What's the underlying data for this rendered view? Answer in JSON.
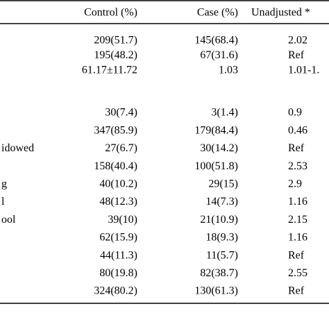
{
  "table": {
    "header": [
      "Control (%)",
      "Case (%)",
      "Unadjusted *"
    ],
    "rows": [
      {
        "control": "209(51.7)",
        "case": "145(68.4)",
        "unadjusted": "2.02"
      },
      {
        "control": "195(48.2)",
        "case": "67(31.6)",
        "unadjusted": "Ref"
      },
      {
        "control": "61.17±11.72",
        "case": "1.03",
        "unadjusted": "1.01-1."
      },
      {
        "control": "30(7.4)",
        "case": "3(1.4)",
        "unadjusted": "0.9"
      },
      {
        "control": "347(85.9)",
        "case": "179(84.4)",
        "unadjusted": "0.46"
      },
      {
        "label": "idowed",
        "control": "27(6.7)",
        "case": "30(14.2)",
        "unadjusted": "Ref"
      },
      {
        "control": "158(40.4)",
        "case": "100(51.8)",
        "unadjusted": "2.53"
      },
      {
        "label": "g",
        "control": "40(10.2)",
        "case": "29(15)",
        "unadjusted": "2.9"
      },
      {
        "label": "l",
        "control": "48(12.3)",
        "case": "14(7.3)",
        "unadjusted": "1.16"
      },
      {
        "label": "ool",
        "control": "39(10)",
        "case": "21(10.9)",
        "unadjusted": "2.15"
      },
      {
        "control": "62(15.9)",
        "case": "18(9.3)",
        "unadjusted": "1.16"
      },
      {
        "control": "44(11.3)",
        "case": "11(5.7)",
        "unadjusted": "Ref"
      },
      {
        "control": "80(19.8)",
        "case": "82(38.7)",
        "unadjusted": "2.55"
      },
      {
        "control": "324(80.2)",
        "case": "130(61.3)",
        "unadjusted": "Ref"
      }
    ]
  }
}
